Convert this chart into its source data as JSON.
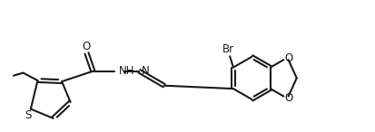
{
  "background_color": "#ffffff",
  "line_color": "#1a1a1a",
  "line_width": 1.5,
  "font_size": 8.5,
  "figsize": [
    4.14,
    1.46
  ],
  "dpi": 100,
  "xlim": [
    0,
    10.5
  ],
  "ylim": [
    0,
    3.8
  ]
}
